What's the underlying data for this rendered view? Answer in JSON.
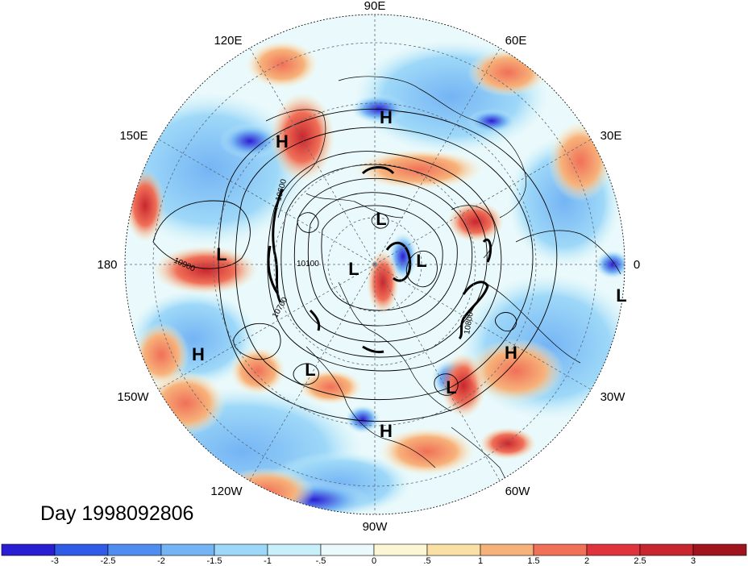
{
  "map": {
    "projection": "north-polar-stereographic",
    "date_label": "Day 1998092806",
    "longitude_labels": [
      "90E",
      "60E",
      "30E",
      "0",
      "30W",
      "60W",
      "90W",
      "120W",
      "150W",
      "180",
      "150E",
      "120E"
    ],
    "contour_labels": [
      "10900",
      "10100",
      "10700",
      "10800",
      "10600"
    ],
    "pressure_centers": [
      {
        "text": "H",
        "region": "east-asia-north"
      },
      {
        "text": "H",
        "region": "east-siberia"
      },
      {
        "text": "L",
        "region": "north-pacific-west"
      },
      {
        "text": "H",
        "region": "central-pacific"
      },
      {
        "text": "L",
        "region": "arctic-north"
      },
      {
        "text": "L",
        "region": "arctic-central"
      },
      {
        "text": "L",
        "region": "greenland-north"
      },
      {
        "text": "L",
        "region": "north-america"
      },
      {
        "text": "L",
        "region": "north-atlantic"
      },
      {
        "text": "H",
        "region": "atlantic-east"
      },
      {
        "text": "H",
        "region": "caribbean"
      },
      {
        "text": "L",
        "region": "west-africa"
      }
    ]
  },
  "colorbar": {
    "tick_labels": [
      "-3",
      "-2.5",
      "-2",
      "-1.5",
      "-1",
      "-.5",
      "0",
      ".5",
      "1",
      "1.5",
      "2",
      "2.5",
      "3"
    ],
    "colors": [
      "#2a1ed2",
      "#2f5be6",
      "#4f8ef0",
      "#74b4f4",
      "#9ed8f8",
      "#c8f0fa",
      "#eaf9fb",
      "#fdf6d4",
      "#fbe0a6",
      "#f7b27a",
      "#f07058",
      "#e0343c",
      "#c8262e",
      "#a0141e"
    ]
  }
}
